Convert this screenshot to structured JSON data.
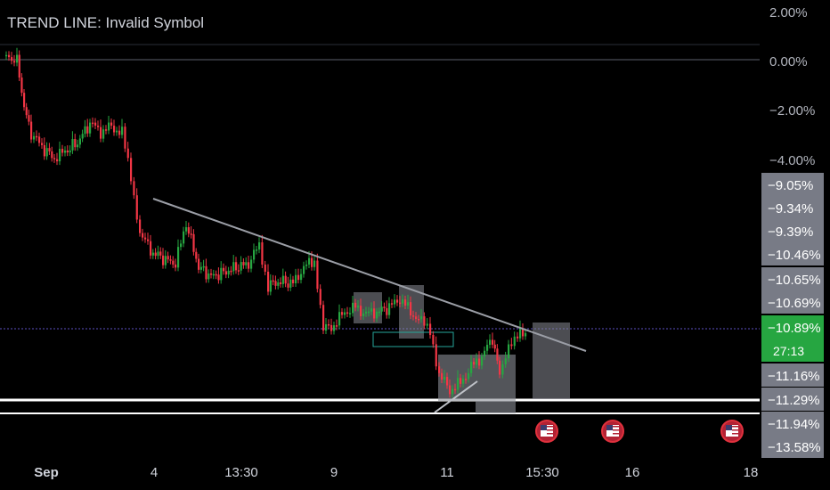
{
  "chart_data": {
    "type": "candlestick",
    "title": "TREND LINE: Invalid Symbol",
    "x_ticks": [
      "Sep",
      "4",
      "13:30",
      "9",
      "11",
      "15:30",
      "16",
      "18"
    ],
    "y_ticks": [
      "2.00%",
      "0.00%",
      "−2.00%",
      "−4.00%"
    ],
    "y_unit": "percent",
    "price_labels": [
      {
        "text": "−9.05%",
        "color": "#787b86"
      },
      {
        "text": "−9.34%",
        "color": "#787b86"
      },
      {
        "text": "−9.39%",
        "color": "#787b86"
      },
      {
        "text": "−10.46%",
        "color": "#787b86"
      },
      {
        "text": "−10.65%",
        "color": "#787b86"
      },
      {
        "text": "−10.69%",
        "color": "#787b86"
      },
      {
        "text": "−10.89%",
        "color": "#26a641"
      },
      {
        "text": "−11.16%",
        "color": "#787b86"
      },
      {
        "text": "−11.29%",
        "color": "#787b86"
      },
      {
        "text": "−11.94%",
        "color": "#787b86"
      },
      {
        "text": "−13.58%",
        "color": "#787b86"
      }
    ],
    "countdown": "27:13",
    "events": [
      "us-flag-icon",
      "us-flag-icon",
      "us-flag-icon"
    ],
    "colors": {
      "up": "#26a641",
      "down": "#f23645",
      "trendline": "#9b9ea6",
      "bg": "#000000"
    }
  }
}
